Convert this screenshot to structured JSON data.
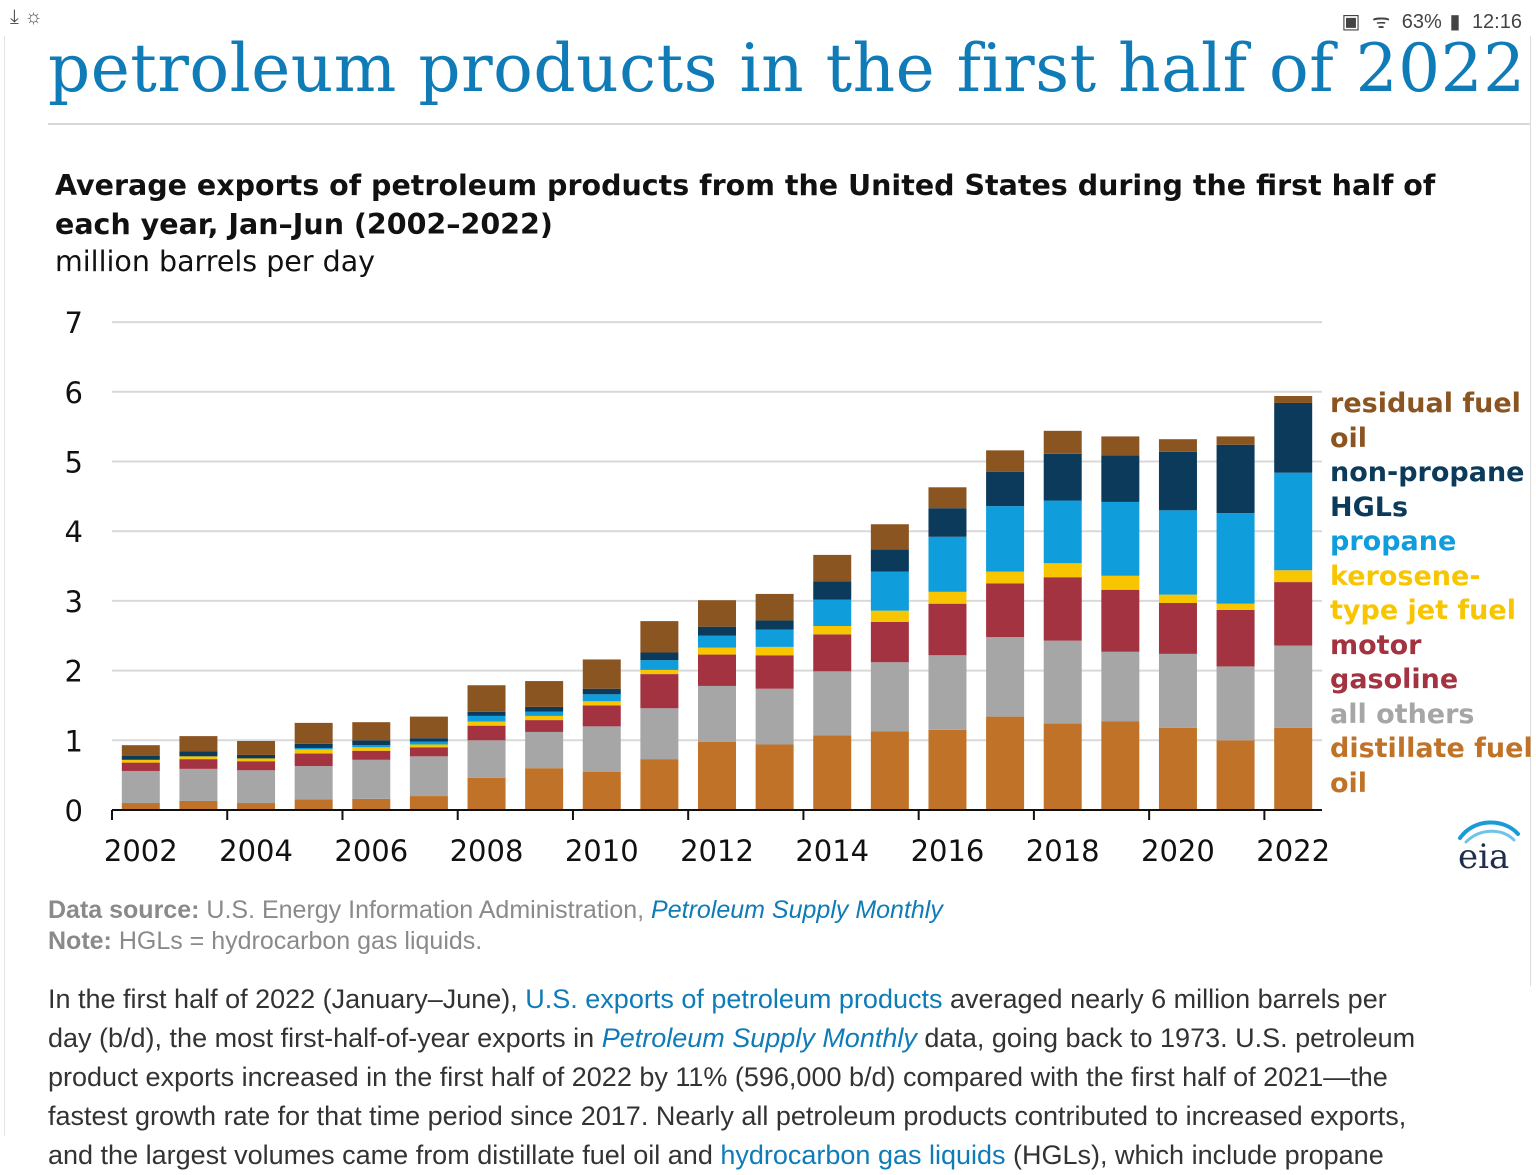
{
  "status_bar": {
    "left_icons": [
      "download-icon",
      "weather-icon"
    ],
    "battery": "63%",
    "time": "12:16"
  },
  "headline": "petroleum products in the first half of 2022",
  "chart_title": "Average exports of petroleum products from the United States during the first half of each year, Jan–Jun (2002–2022)",
  "chart_units": "million barrels per day",
  "chart_data": {
    "type": "bar",
    "stacked": true,
    "title": "Average exports of petroleum products from the United States during the first half of each year, Jan–Jun (2002–2022)",
    "ylabel": "million barrels per day",
    "xlabel": "",
    "ylim": [
      0,
      7
    ],
    "yticks": [
      "0",
      "1",
      "2",
      "3",
      "4",
      "5",
      "6",
      "7"
    ],
    "xtick_labels": [
      "2002",
      "2004",
      "2006",
      "2008",
      "2010",
      "2012",
      "2014",
      "2016",
      "2018",
      "2020",
      "2022"
    ],
    "grid": true,
    "legend_position": "right",
    "categories": [
      "2002",
      "2003",
      "2004",
      "2005",
      "2006",
      "2007",
      "2008",
      "2009",
      "2010",
      "2011",
      "2012",
      "2013",
      "2014",
      "2015",
      "2016",
      "2017",
      "2018",
      "2019",
      "2020",
      "2021",
      "2022"
    ],
    "series": [
      {
        "name": "distillate fuel oil",
        "color": "#c07328",
        "values": [
          0.1,
          0.13,
          0.1,
          0.15,
          0.16,
          0.2,
          0.46,
          0.6,
          0.55,
          0.73,
          0.98,
          0.94,
          1.07,
          1.13,
          1.15,
          1.34,
          1.24,
          1.27,
          1.18,
          1.0,
          1.18
        ]
      },
      {
        "name": "all others",
        "color": "#a6a6a6",
        "values": [
          0.46,
          0.46,
          0.47,
          0.48,
          0.56,
          0.57,
          0.54,
          0.52,
          0.65,
          0.73,
          0.8,
          0.8,
          0.92,
          0.99,
          1.07,
          1.14,
          1.19,
          1.0,
          1.06,
          1.06,
          1.18
        ]
      },
      {
        "name": "motor gasoline",
        "color": "#a33340",
        "values": [
          0.12,
          0.14,
          0.13,
          0.18,
          0.13,
          0.13,
          0.21,
          0.17,
          0.3,
          0.49,
          0.45,
          0.48,
          0.53,
          0.58,
          0.74,
          0.77,
          0.91,
          0.89,
          0.73,
          0.81,
          0.91
        ]
      },
      {
        "name": "kerosene-type jet fuel",
        "color": "#f7c600",
        "values": [
          0.04,
          0.04,
          0.04,
          0.06,
          0.05,
          0.04,
          0.06,
          0.06,
          0.06,
          0.06,
          0.1,
          0.12,
          0.12,
          0.16,
          0.17,
          0.17,
          0.2,
          0.2,
          0.12,
          0.09,
          0.17
        ]
      },
      {
        "name": "propane",
        "color": "#0f9ddb",
        "values": [
          0.0,
          0.0,
          0.0,
          0.02,
          0.03,
          0.04,
          0.08,
          0.06,
          0.1,
          0.14,
          0.17,
          0.25,
          0.38,
          0.56,
          0.79,
          0.94,
          0.9,
          1.06,
          1.21,
          1.3,
          1.4
        ]
      },
      {
        "name": "non-propane HGLs",
        "color": "#0b3a5a",
        "values": [
          0.06,
          0.07,
          0.05,
          0.06,
          0.07,
          0.05,
          0.06,
          0.07,
          0.08,
          0.11,
          0.13,
          0.13,
          0.26,
          0.32,
          0.41,
          0.49,
          0.67,
          0.67,
          0.84,
          0.98,
          1.0
        ]
      },
      {
        "name": "residual fuel oil",
        "color": "#8b5522",
        "values": [
          0.15,
          0.22,
          0.2,
          0.3,
          0.26,
          0.31,
          0.38,
          0.37,
          0.42,
          0.45,
          0.38,
          0.38,
          0.38,
          0.36,
          0.3,
          0.31,
          0.33,
          0.27,
          0.18,
          0.12,
          0.1
        ]
      }
    ]
  },
  "legend": [
    {
      "label": "residual fuel oil",
      "color": "#8b5522"
    },
    {
      "label": "non-propane HGLs",
      "color": "#0b3a5a"
    },
    {
      "label": "propane",
      "color": "#0f9ddb"
    },
    {
      "label": "kerosene-type jet fuel",
      "color": "#f7c600"
    },
    {
      "label": "motor gasoline",
      "color": "#a33340"
    },
    {
      "label": "all others",
      "color": "#a6a6a6"
    },
    {
      "label": "distillate fuel oil",
      "color": "#c07328"
    }
  ],
  "logo_text": "eia",
  "source": {
    "label": "Data source:",
    "text": " U.S. Energy Information Administration, ",
    "link": "Petroleum Supply Monthly",
    "note_label": "Note:",
    "note_text": " HGLs = hydrocarbon gas liquids."
  },
  "paragraph": {
    "l1_a": "In the first half of 2022 (January–June), ",
    "l1_link": "U.S. exports of petroleum products",
    "l1_b": " averaged nearly 6 million barrels per",
    "l2_a": "day (b/d), the most first-half-of-year exports in ",
    "l2_link": "Petroleum Supply Monthly",
    "l2_b": " data, going back to 1973. U.S. petroleum",
    "l3": "product exports increased in the first half of 2022 by 11% (596,000 b/d) compared with the first half of 2021—the",
    "l4": "fastest growth rate for that time period since 2017. Nearly all petroleum products contributed to increased exports,",
    "l5_a": "and the largest volumes came from distillate fuel oil and ",
    "l5_link": "hydrocarbon gas liquids",
    "l5_b": " (HGLs), which include propane"
  }
}
